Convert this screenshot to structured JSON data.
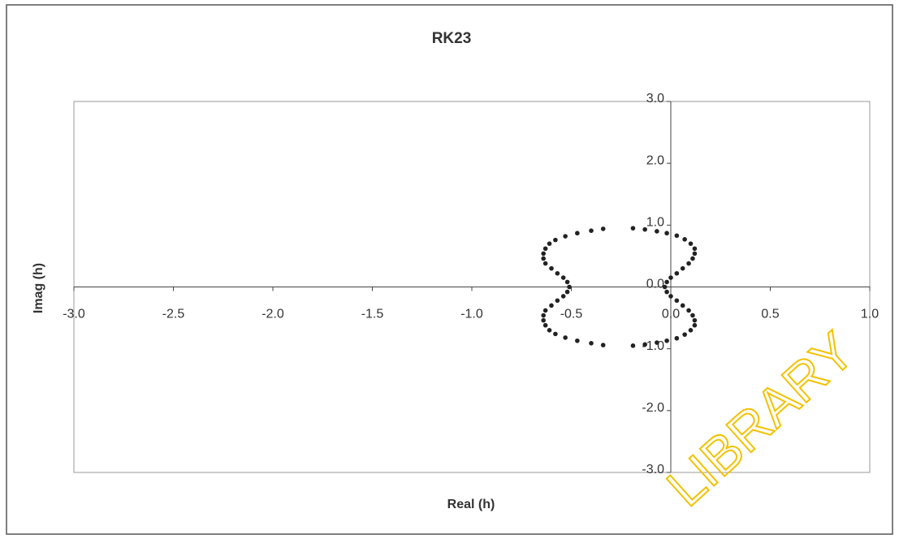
{
  "chart_data": {
    "type": "scatter",
    "title": "RK23",
    "xlabel": "Real (h)",
    "ylabel": "Imag (h)",
    "watermark": "LIBRARY",
    "color": "#222222",
    "x": [
      -0.51,
      -0.52,
      -0.54,
      -0.57,
      -0.6,
      -0.63,
      -0.64,
      -0.64,
      -0.63,
      -0.61,
      -0.58,
      -0.53,
      -0.47,
      -0.4,
      -0.34,
      -0.19,
      -0.13,
      -0.07,
      -0.02,
      0.03,
      0.07,
      0.1,
      0.12,
      0.12,
      0.11,
      0.09,
      0.06,
      0.03,
      0.0,
      -0.02,
      -0.03,
      -0.52,
      -0.54,
      -0.57,
      -0.6,
      -0.63,
      -0.64,
      -0.64,
      -0.63,
      -0.61,
      -0.58,
      -0.53,
      -0.47,
      -0.4,
      -0.34,
      -0.19,
      -0.13,
      -0.07,
      -0.02,
      0.03,
      0.07,
      0.1,
      0.12,
      0.12,
      0.11,
      0.09,
      0.06,
      0.03,
      0.0,
      -0.02
    ],
    "y": [
      0,
      0.08,
      0.15,
      0.22,
      0.3,
      0.38,
      0.46,
      0.54,
      0.62,
      0.7,
      0.76,
      0.82,
      0.87,
      0.91,
      0.94,
      0.95,
      0.93,
      0.9,
      0.87,
      0.83,
      0.77,
      0.7,
      0.62,
      0.54,
      0.46,
      0.38,
      0.3,
      0.22,
      0.15,
      0.08,
      0,
      -0.08,
      -0.15,
      -0.22,
      -0.3,
      -0.38,
      -0.46,
      -0.54,
      -0.62,
      -0.7,
      -0.76,
      -0.82,
      -0.87,
      -0.91,
      -0.94,
      -0.95,
      -0.93,
      -0.9,
      -0.87,
      -0.83,
      -0.77,
      -0.7,
      -0.62,
      -0.54,
      -0.46,
      -0.38,
      -0.3,
      -0.22,
      -0.15,
      -0.08
    ],
    "xlim": [
      -3,
      1
    ],
    "ylim": [
      -3,
      3
    ],
    "xticks": [
      {
        "value": -3,
        "label": "-3.0"
      },
      -2.5,
      {
        "value": -2,
        "label": "-2.0"
      },
      -1.5,
      {
        "value": -1,
        "label": "-1.0"
      },
      -0.5,
      {
        "value": 0,
        "label": "0.0"
      },
      0.5,
      {
        "value": 1,
        "label": "1.0"
      }
    ],
    "yticks": [
      {
        "value": -3,
        "label": "-3.0"
      },
      {
        "value": -2,
        "label": "-2.0"
      },
      {
        "value": -1,
        "label": "-1.0"
      },
      {
        "value": 0,
        "label": "0.0"
      },
      {
        "value": 1,
        "label": "1.0"
      },
      {
        "value": 2,
        "label": "2.0"
      },
      {
        "value": 3,
        "label": "3.0"
      }
    ],
    "grid": false
  }
}
